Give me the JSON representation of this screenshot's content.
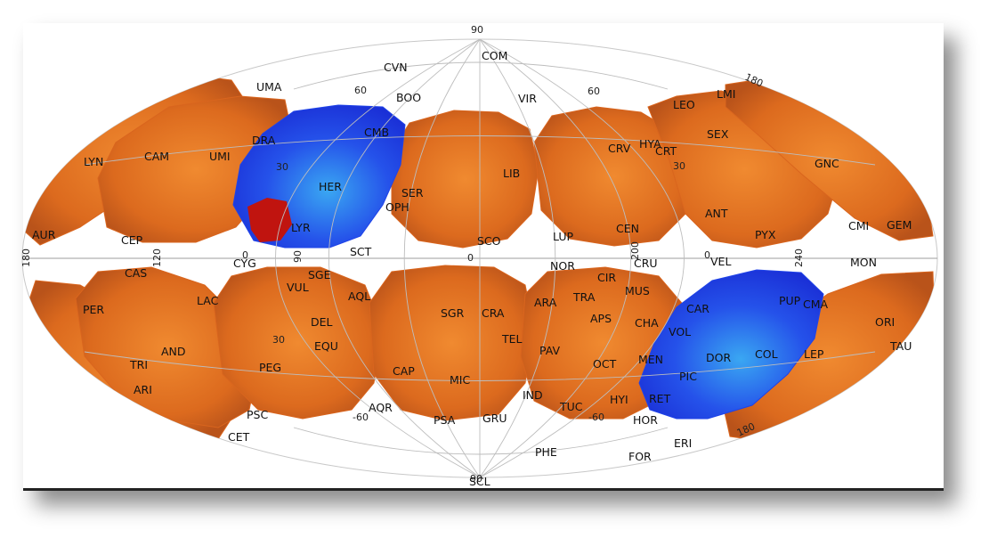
{
  "map": {
    "projection": "Aitoff/Hammer equal-area sky map",
    "colors": {
      "orange_fields": "#d9651e",
      "blue_fields": "#1f43e8",
      "highlight_patch": "#c0140f",
      "grid": "#bdbdbd"
    },
    "grid_labels": {
      "lat_top": "90",
      "lat_bottom": "90",
      "lat_60_left": "60",
      "lat_60_right": "60",
      "lat_30_left": "30",
      "lat_30_right": "30",
      "lat_m30_left": "30",
      "lat_m60_left": "-60",
      "lat_m60_right": "-60",
      "lon_0_top": "0",
      "lon_0_bottom": "0",
      "lon_90_top": "90",
      "lon_120_left": "120",
      "lon_180_left": "180",
      "lon_180_top_right": "180",
      "lon_180_bottom_right": "180",
      "lon_200": "200",
      "lon_240": "240",
      "lon_0_right": "0",
      "equator_0": "0"
    },
    "constellations": [
      "COM",
      "CVN",
      "UMA",
      "BOO",
      "VIR",
      "LMI",
      "LEO",
      "DRA",
      "CMB",
      "SEX",
      "HYA",
      "CRV",
      "CRT",
      "LYN",
      "CAM",
      "UMI",
      "LIB",
      "GNC",
      "HER",
      "SER",
      "OPH",
      "ANT",
      "CMI",
      "GEM",
      "AUR",
      "CEP",
      "LYR",
      "SCO",
      "LUP",
      "CEN",
      "PYX",
      "SCT",
      "CYG",
      "CAS",
      "SGE",
      "NOR",
      "CIR",
      "CRU",
      "VEL",
      "MON",
      "VUL",
      "AQL",
      "TRA",
      "MUS",
      "PER",
      "LAC",
      "DEL",
      "SGR",
      "CRA",
      "ARA",
      "CAR",
      "PUP",
      "CMA",
      "ORI",
      "APS",
      "CHA",
      "TEL",
      "EQU",
      "AND",
      "PAV",
      "VOL",
      "TAU",
      "LEP",
      "TRI",
      "PEG",
      "CAP",
      "MIC",
      "OCT",
      "MEN",
      "DOR",
      "COL",
      "ARI",
      "PIC",
      "IND",
      "HYI",
      "RET",
      "PSC",
      "AQR",
      "TUC",
      "HOR",
      "PSA",
      "GRU",
      "CET",
      "ERI",
      "PHE",
      "FOR",
      "SCL"
    ]
  }
}
